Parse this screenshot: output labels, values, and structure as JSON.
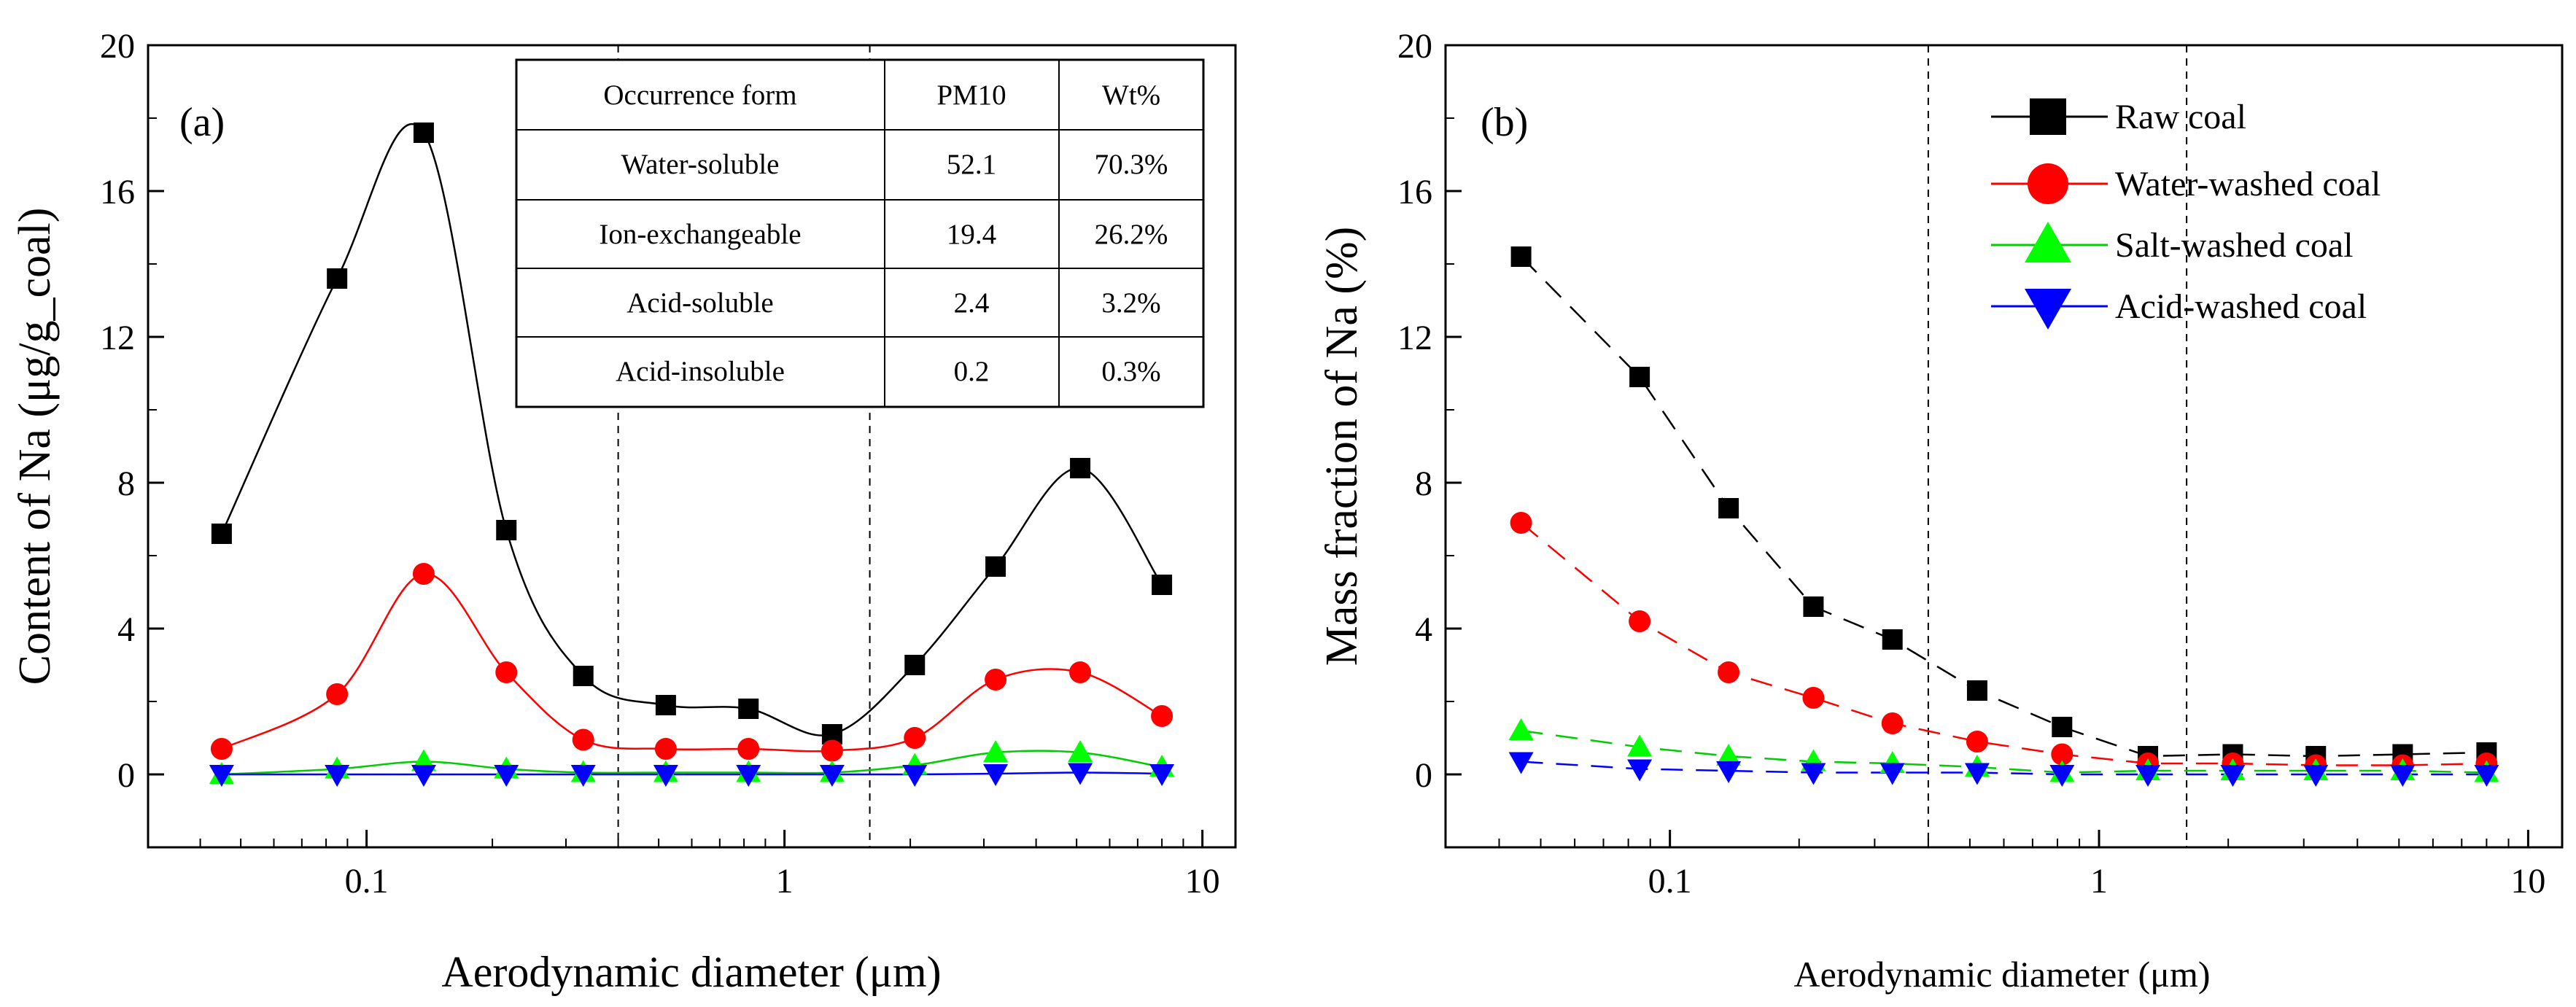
{
  "chart_data": [
    {
      "type": "scatter",
      "panel_label": "(a)",
      "xlabel": "Aerodynamic diameter (μm)",
      "ylabel": "Content of Na (μg/g_coal)",
      "xscale": "log",
      "xlim": [
        0.03,
        12
      ],
      "ylim": [
        -2,
        20
      ],
      "yticks": [
        0,
        4,
        8,
        12,
        16,
        20
      ],
      "xticks": [
        0.1,
        1,
        10
      ],
      "xtick_labels": [
        "0.1",
        "1",
        "10"
      ],
      "ytick_labels": [
        "0",
        "4",
        "8",
        "12",
        "16",
        "20"
      ],
      "reference_lines_x": [
        0.4,
        1.6
      ],
      "x": [
        0.045,
        0.085,
        0.137,
        0.216,
        0.33,
        0.52,
        0.82,
        1.3,
        2.05,
        3.2,
        5.1,
        8.0
      ],
      "series": [
        {
          "name": "Raw coal",
          "color": "#000000",
          "marker": "square",
          "values": [
            6.6,
            13.6,
            17.6,
            6.7,
            2.7,
            1.9,
            1.8,
            1.1,
            3.0,
            5.7,
            8.4,
            5.2
          ]
        },
        {
          "name": "Water-washed coal",
          "color": "#ff0000",
          "marker": "circle",
          "values": [
            0.7,
            2.2,
            5.5,
            2.8,
            0.95,
            0.7,
            0.7,
            0.65,
            1.0,
            2.6,
            2.8,
            1.6
          ]
        },
        {
          "name": "Salt-washed coal",
          "color": "#00cc00",
          "marker": "triangle-up",
          "values": [
            0.0,
            0.15,
            0.35,
            0.15,
            0.05,
            0.05,
            0.05,
            0.05,
            0.25,
            0.6,
            0.6,
            0.2
          ]
        },
        {
          "name": "Acid-washed coal",
          "color": "#0000ff",
          "marker": "triangle-down",
          "values": [
            0.0,
            0.0,
            0.0,
            0.0,
            0.0,
            0.0,
            0.0,
            0.0,
            0.0,
            0.02,
            0.05,
            0.02
          ]
        }
      ],
      "inset_table": {
        "headers": [
          "Occurrence form",
          "PM10",
          "Wt%"
        ],
        "rows": [
          [
            "Water-soluble",
            "52.1",
            "70.3%"
          ],
          [
            "Ion-exchangeable",
            "19.4",
            "26.2%"
          ],
          [
            "Acid-soluble",
            "2.4",
            "3.2%"
          ],
          [
            "Acid-insoluble",
            "0.2",
            "0.3%"
          ]
        ]
      }
    },
    {
      "type": "line",
      "panel_label": "(b)",
      "xlabel": "Aerodynamic diameter (μm)",
      "ylabel": "Mass fraction of Na (%)",
      "xscale": "log",
      "xlim": [
        0.03,
        12
      ],
      "ylim": [
        -2,
        20
      ],
      "yticks": [
        0,
        4,
        8,
        12,
        16,
        20
      ],
      "xticks": [
        0.1,
        1,
        10
      ],
      "xtick_labels": [
        "0.1",
        "1",
        "10"
      ],
      "ytick_labels": [
        "0",
        "4",
        "8",
        "12",
        "16",
        "20"
      ],
      "reference_lines_x": [
        0.4,
        1.6
      ],
      "legend_position": "top-right",
      "x": [
        0.045,
        0.085,
        0.137,
        0.216,
        0.33,
        0.52,
        0.82,
        1.3,
        2.05,
        3.2,
        5.1,
        8.0
      ],
      "series": [
        {
          "name": "Raw coal",
          "color": "#000000",
          "marker": "square",
          "values": [
            14.2,
            10.9,
            7.3,
            4.6,
            3.7,
            2.3,
            1.3,
            0.5,
            0.55,
            0.5,
            0.55,
            0.6
          ]
        },
        {
          "name": "Water-washed coal",
          "color": "#ff0000",
          "marker": "circle",
          "values": [
            6.9,
            4.2,
            2.8,
            2.1,
            1.4,
            0.9,
            0.55,
            0.3,
            0.3,
            0.25,
            0.25,
            0.3
          ]
        },
        {
          "name": "Salt-washed coal",
          "color": "#00cc00",
          "marker": "triangle-up",
          "values": [
            1.2,
            0.75,
            0.5,
            0.35,
            0.3,
            0.2,
            0.05,
            0.1,
            0.1,
            0.1,
            0.1,
            0.05
          ]
        },
        {
          "name": "Acid-washed coal",
          "color": "#0000ff",
          "marker": "triangle-down",
          "values": [
            0.35,
            0.15,
            0.1,
            0.05,
            0.05,
            0.05,
            0.0,
            0.0,
            0.0,
            0.0,
            0.0,
            0.0
          ]
        }
      ]
    }
  ]
}
